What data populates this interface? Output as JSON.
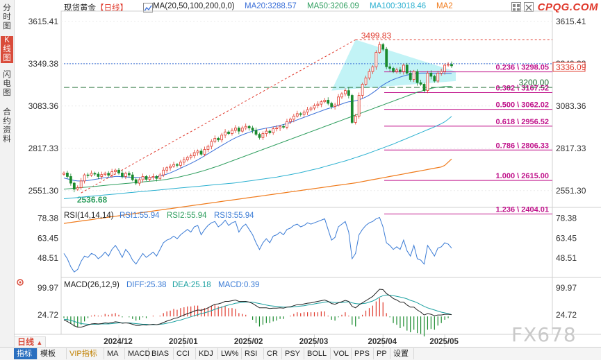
{
  "sidebar": {
    "items": [
      "分时图",
      "K线图",
      "闪电图",
      "合约资料"
    ]
  },
  "header": {
    "instrument": "现货黄金",
    "period": "【日线】",
    "ma_label": "MA(20,50,100,200,0,0)",
    "ma20": "MA20:3288.57",
    "ma50": "MA50:3206.09",
    "ma100": "MA100:3018.46",
    "ma2": "MA2",
    "logo": "CPQG.COM"
  },
  "colors": {
    "up": "#e0392c",
    "down": "#1a8a2e",
    "ma20": "#3a6fd8",
    "ma50": "#2e9e5e",
    "ma100": "#2ab0d0",
    "ma200": "#f07a1a",
    "fib": "#c0118a",
    "rsi": "#3a7bd5",
    "dea": "#1aa0a0"
  },
  "chart_data": [
    {
      "type": "candlestick",
      "title": "现货黄金【日线】",
      "ylim": [
        2450,
        3680
      ],
      "y_ticks": [
        "3615.41",
        "3349.38",
        "3083.36",
        "2817.33",
        "2551.30"
      ],
      "y_tick_values": [
        3615.41,
        3349.38,
        3083.36,
        2817.33,
        2551.3
      ],
      "x_ticks": [
        "2024/12",
        "2025/01",
        "2025/02",
        "2025/03",
        "2025/04",
        "2025/05"
      ],
      "last_price": "3336.09",
      "last_price_value": 3336.09,
      "high_label": "3499.83",
      "high_value": 3499.83,
      "low_label": "2536.68",
      "low_value": 2536.68,
      "hline_label": "3200.00",
      "hline_value": 3200.0,
      "close": [
        2662,
        2640,
        2598,
        2560,
        2570,
        2612,
        2650,
        2648,
        2660,
        2655,
        2640,
        2652,
        2660,
        2648,
        2670,
        2680,
        2662,
        2640,
        2660,
        2650,
        2620,
        2598,
        2620,
        2640,
        2622,
        2634,
        2640,
        2628,
        2650,
        2680,
        2695,
        2705,
        2715,
        2710,
        2730,
        2745,
        2760,
        2770,
        2790,
        2800,
        2780,
        2810,
        2830,
        2860,
        2880,
        2870,
        2900,
        2920,
        2910,
        2930,
        2945,
        2925,
        2945,
        2955,
        2945,
        2930,
        2905,
        2885,
        2910,
        2925,
        2915,
        2940,
        2945,
        2955,
        2950,
        2985,
        3000,
        3020,
        3035,
        3030,
        3045,
        3060,
        3070,
        3085,
        3095,
        3110,
        3120,
        3100,
        3080,
        3090,
        3140,
        3160,
        3180,
        3150,
        2980,
        3020,
        3150,
        3220,
        3260,
        3300,
        3330,
        3420,
        3470,
        3440,
        3330,
        3320,
        3300,
        3310,
        3300,
        3340,
        3290,
        3250,
        3300,
        3230,
        3220,
        3180,
        3290,
        3270,
        3240,
        3290,
        3300,
        3340,
        3345,
        3336
      ],
      "ma20": [
        2630,
        2625,
        2620,
        2615,
        2612,
        2612,
        2613,
        2615,
        2618,
        2622,
        2625,
        2630,
        2632,
        2635,
        2637,
        2640,
        2640,
        2638,
        2637,
        2636,
        2635,
        2635,
        2633,
        2632,
        2632,
        2633,
        2635,
        2638,
        2642,
        2648,
        2655,
        2663,
        2672,
        2682,
        2692,
        2702,
        2712,
        2722,
        2733,
        2745,
        2757,
        2770,
        2783,
        2796,
        2809,
        2822,
        2835,
        2848,
        2860,
        2872,
        2883,
        2893,
        2902,
        2910,
        2918,
        2925,
        2931,
        2936,
        2940,
        2944,
        2948,
        2952,
        2956,
        2961,
        2967,
        2973,
        2980,
        2988,
        2996,
        3004,
        3012,
        3020,
        3028,
        3036,
        3044,
        3052,
        3060,
        3067,
        3073,
        3080,
        3088,
        3096,
        3104,
        3110,
        3112,
        3116,
        3122,
        3130,
        3140,
        3152,
        3166,
        3182,
        3200,
        3215,
        3228,
        3240,
        3250,
        3258,
        3265,
        3272,
        3278,
        3282,
        3286,
        3288,
        3290,
        3290,
        3290,
        3290,
        3289,
        3289,
        3288,
        3288,
        3288,
        3288
      ],
      "ma50": [
        2560,
        2562,
        2564,
        2566,
        2568,
        2570,
        2572,
        2574,
        2576,
        2578,
        2580,
        2582,
        2584,
        2586,
        2588,
        2590,
        2592,
        2594,
        2596,
        2598,
        2600,
        2602,
        2604,
        2606,
        2608,
        2610,
        2612,
        2614,
        2616,
        2619,
        2622,
        2626,
        2630,
        2634,
        2639,
        2644,
        2649,
        2654,
        2660,
        2666,
        2672,
        2678,
        2685,
        2692,
        2699,
        2706,
        2714,
        2722,
        2730,
        2738,
        2746,
        2754,
        2762,
        2770,
        2778,
        2786,
        2794,
        2802,
        2810,
        2818,
        2826,
        2834,
        2842,
        2850,
        2858,
        2866,
        2874,
        2882,
        2890,
        2898,
        2906,
        2914,
        2922,
        2930,
        2938,
        2946,
        2954,
        2962,
        2970,
        2978,
        2986,
        2994,
        3002,
        3010,
        3018,
        3026,
        3034,
        3042,
        3050,
        3058,
        3066,
        3074,
        3082,
        3090,
        3098,
        3106,
        3114,
        3122,
        3130,
        3138,
        3146,
        3154,
        3162,
        3170,
        3176,
        3182,
        3188,
        3194,
        3198,
        3201,
        3203,
        3205,
        3206,
        3206
      ],
      "ma100": [
        2500,
        2502,
        2504,
        2506,
        2508,
        2510,
        2512,
        2514,
        2516,
        2518,
        2520,
        2522,
        2524,
        2526,
        2528,
        2530,
        2532,
        2534,
        2536,
        2538,
        2540,
        2542,
        2544,
        2546,
        2548,
        2550,
        2552,
        2554,
        2556,
        2558,
        2560,
        2562,
        2564,
        2566,
        2568,
        2570,
        2572,
        2574,
        2576,
        2578,
        2580,
        2582,
        2584,
        2586,
        2588,
        2590,
        2592,
        2594,
        2596,
        2598,
        2600,
        2603,
        2606,
        2609,
        2612,
        2615,
        2618,
        2621,
        2624,
        2627,
        2630,
        2633,
        2636,
        2640,
        2644,
        2648,
        2652,
        2656,
        2660,
        2665,
        2670,
        2675,
        2680,
        2685,
        2690,
        2696,
        2702,
        2708,
        2714,
        2720,
        2726,
        2732,
        2738,
        2745,
        2752,
        2759,
        2766,
        2773,
        2780,
        2788,
        2796,
        2804,
        2812,
        2820,
        2828,
        2836,
        2844,
        2853,
        2862,
        2871,
        2880,
        2889,
        2898,
        2907,
        2916,
        2925,
        2934,
        2943,
        2952,
        2962,
        2972,
        2984,
        3000,
        3018
      ],
      "ma200": [
        2345,
        2348,
        2351,
        2354,
        2357,
        2360,
        2363,
        2366,
        2369,
        2372,
        2375,
        2378,
        2381,
        2384,
        2387,
        2390,
        2393,
        2396,
        2399,
        2402,
        2405,
        2408,
        2411,
        2414,
        2417,
        2420,
        2423,
        2426,
        2429,
        2432,
        2435,
        2438,
        2441,
        2444,
        2447,
        2450,
        2453,
        2456,
        2459,
        2462,
        2465,
        2468,
        2471,
        2474,
        2477,
        2480,
        2483,
        2486,
        2489,
        2492,
        2495,
        2498,
        2501,
        2504,
        2507,
        2510,
        2513,
        2516,
        2519,
        2522,
        2525,
        2528,
        2531,
        2534,
        2537,
        2540,
        2543,
        2546,
        2549,
        2552,
        2555,
        2558,
        2561,
        2564,
        2567,
        2570,
        2573,
        2576,
        2579,
        2582,
        2585,
        2588,
        2591,
        2594,
        2597,
        2600,
        2604,
        2608,
        2612,
        2616,
        2620,
        2624,
        2628,
        2632,
        2636,
        2640,
        2644,
        2648,
        2652,
        2656,
        2660,
        2664,
        2668,
        2672,
        2676,
        2680,
        2684,
        2688,
        2692,
        2696,
        2700,
        2710,
        2730,
        2750
      ],
      "fibonacci": [
        {
          "label": "0.236 \\ 3298.05",
          "value": 3298.05
        },
        {
          "label": "0.382 \\ 3167.52",
          "value": 3167.52
        },
        {
          "label": "0.500 \\ 3062.02",
          "value": 3062.02
        },
        {
          "label": "0.618 \\ 2956.52",
          "value": 2956.52
        },
        {
          "label": "0.786 \\ 2806.33",
          "value": 2806.33
        },
        {
          "label": "1.000 \\ 2615.00",
          "value": 2615.0
        },
        {
          "label": "1.236 \\ 2404.01",
          "value": 2404.01
        }
      ]
    },
    {
      "type": "line",
      "title": "RSI(14,14,14)",
      "legend": [
        "RSI1:55.94",
        "RSI2:55.94",
        "RSI3:55.94"
      ],
      "ylim": [
        35,
        85
      ],
      "y_ticks": [
        "78.38",
        "63.45",
        "48.51"
      ],
      "y_tick_values": [
        78.38,
        63.45,
        48.51
      ],
      "rsi": [
        52,
        48,
        42,
        38,
        40,
        46,
        50,
        49,
        52,
        51,
        48,
        50,
        53,
        50,
        55,
        58,
        54,
        49,
        55,
        52,
        47,
        44,
        48,
        52,
        49,
        51,
        53,
        50,
        55,
        60,
        62,
        63,
        65,
        63,
        66,
        68,
        70,
        68,
        72,
        73,
        66,
        70,
        73,
        75,
        76,
        72,
        74,
        77,
        73,
        75,
        76,
        68,
        72,
        74,
        70,
        66,
        60,
        55,
        60,
        63,
        60,
        65,
        66,
        68,
        66,
        70,
        71,
        73,
        74,
        72,
        73,
        75,
        74,
        75,
        76,
        77,
        78,
        70,
        62,
        64,
        72,
        74,
        76,
        68,
        48,
        52,
        66,
        70,
        73,
        75,
        76,
        78,
        79,
        72,
        60,
        58,
        55,
        57,
        55,
        62,
        54,
        50,
        58,
        48,
        47,
        44,
        58,
        54,
        50,
        56,
        57,
        60,
        59,
        56
      ]
    },
    {
      "type": "line",
      "title": "MACD(26,12,9)",
      "legend": [
        "DIFF:25.38",
        "DEA:25.18",
        "MACD:0.39"
      ],
      "ylim": [
        -30,
        125
      ],
      "y_ticks": [
        "99.97",
        "24.72"
      ],
      "y_tick_values": [
        99.97,
        24.72
      ],
      "diff": [
        10,
        6,
        0,
        -6,
        -10,
        -10,
        -7,
        -4,
        -1,
        0,
        -1,
        0,
        2,
        1,
        3,
        5,
        4,
        1,
        2,
        1,
        -2,
        -5,
        -5,
        -3,
        -4,
        -3,
        -2,
        -3,
        -1,
        3,
        7,
        10,
        14,
        16,
        20,
        24,
        28,
        31,
        35,
        38,
        37,
        40,
        44,
        49,
        54,
        55,
        58,
        62,
        62,
        64,
        66,
        62,
        62,
        62,
        60,
        56,
        50,
        44,
        44,
        44,
        42,
        43,
        43,
        44,
        43,
        46,
        47,
        50,
        53,
        53,
        55,
        57,
        58,
        60,
        62,
        64,
        66,
        62,
        56,
        54,
        58,
        61,
        65,
        62,
        48,
        44,
        52,
        58,
        64,
        70,
        76,
        86,
        96,
        95,
        84,
        78,
        70,
        66,
        60,
        60,
        52,
        46,
        46,
        38,
        32,
        24,
        28,
        26,
        22,
        24,
        24,
        26,
        26,
        25
      ],
      "dea": [
        12,
        11,
        9,
        6,
        3,
        0,
        -1,
        -2,
        -2,
        -2,
        -2,
        -1,
        -1,
        -1,
        0,
        1,
        2,
        2,
        2,
        2,
        1,
        0,
        -1,
        -2,
        -2,
        -3,
        -3,
        -3,
        -2,
        -1,
        1,
        3,
        5,
        8,
        10,
        13,
        16,
        19,
        22,
        25,
        28,
        30,
        33,
        36,
        40,
        43,
        46,
        49,
        52,
        54,
        57,
        58,
        59,
        60,
        60,
        60,
        58,
        56,
        54,
        52,
        50,
        49,
        48,
        47,
        46,
        46,
        46,
        47,
        48,
        49,
        50,
        52,
        53,
        55,
        57,
        58,
        60,
        61,
        60,
        59,
        59,
        59,
        60,
        61,
        58,
        56,
        55,
        56,
        57,
        60,
        63,
        68,
        74,
        78,
        80,
        79,
        78,
        76,
        74,
        72,
        69,
        65,
        62,
        58,
        53,
        48,
        44,
        41,
        38,
        35,
        32,
        30,
        28,
        25
      ]
    }
  ],
  "bottom_bar": {
    "period_button": "日线",
    "tabs": [
      "指标",
      "模板",
      "VIP指标",
      "MA",
      "MACD",
      "BIAS",
      "CCI",
      "KDJ",
      "LW%",
      "RSI",
      "CR",
      "PSY",
      "BOLL",
      "VOL",
      "PPS",
      "PP",
      "设置"
    ]
  },
  "watermark": "FX678"
}
